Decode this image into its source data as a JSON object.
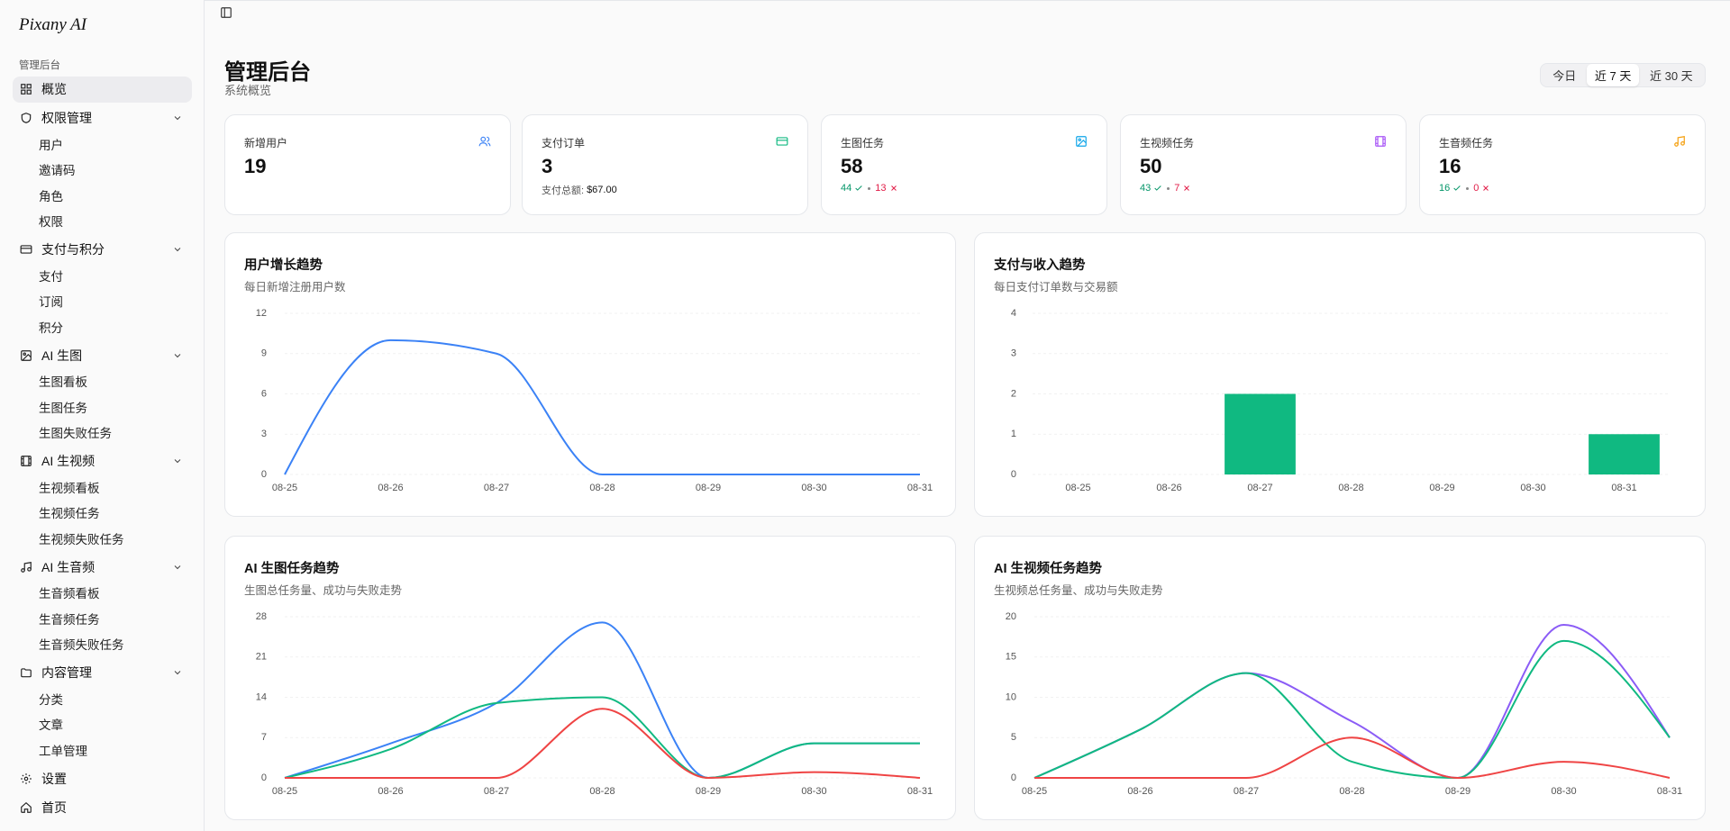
{
  "sidebar": {
    "logo": "Pixany AI",
    "section": "管理后台",
    "items": [
      {
        "label": "概览"
      },
      {
        "label": "权限管理",
        "children": [
          "用户",
          "邀请码",
          "角色",
          "权限"
        ]
      },
      {
        "label": "支付与积分",
        "children": [
          "支付",
          "订阅",
          "积分"
        ]
      },
      {
        "label": "AI 生图",
        "children": [
          "生图看板",
          "生图任务",
          "生图失败任务"
        ]
      },
      {
        "label": "AI 生视频",
        "children": [
          "生视频看板",
          "生视频任务",
          "生视频失败任务"
        ]
      },
      {
        "label": "AI 生音频",
        "children": [
          "生音频看板",
          "生音频任务",
          "生音频失败任务"
        ]
      },
      {
        "label": "内容管理",
        "children": [
          "分类",
          "文章",
          "工单管理"
        ]
      },
      {
        "label": "设置"
      },
      {
        "label": "首页"
      }
    ]
  },
  "header": {
    "title": "管理后台",
    "subtitle": "系统概览",
    "ranges": [
      "今日",
      "近 7 天",
      "近 30 天"
    ]
  },
  "stats": [
    {
      "label": "新增用户",
      "value": 19
    },
    {
      "label": "支付订单",
      "value": 3,
      "note_label": "支付总额:",
      "note_value": "$67.00"
    },
    {
      "label": "生图任务",
      "value": 58,
      "success": 44,
      "failed": 13
    },
    {
      "label": "生视频任务",
      "value": 50,
      "success": 43,
      "failed": 7
    },
    {
      "label": "生音频任务",
      "value": 16,
      "success": 16,
      "failed": 0
    }
  ],
  "chart_data": [
    {
      "type": "line",
      "title": "用户增长趋势",
      "subtitle": "每日新增注册用户数",
      "categories": [
        "08-25",
        "08-26",
        "08-27",
        "08-28",
        "08-29",
        "08-30",
        "08-31"
      ],
      "series": [
        {
          "color": "#3b82f6",
          "values": [
            0,
            10,
            9,
            0,
            0,
            0,
            0
          ]
        }
      ],
      "ylim": [
        0,
        12
      ],
      "yticks": [
        0,
        3,
        6,
        9,
        12
      ],
      "grid": true
    },
    {
      "type": "bar",
      "title": "支付与收入趋势",
      "subtitle": "每日支付订单数与交易额",
      "categories": [
        "08-25",
        "08-26",
        "08-27",
        "08-28",
        "08-29",
        "08-30",
        "08-31"
      ],
      "series": [
        {
          "color": "#10b981",
          "values": [
            0,
            0,
            2,
            0,
            0,
            0,
            1
          ]
        }
      ],
      "ylim": [
        0,
        4
      ],
      "yticks": [
        0,
        1,
        2,
        3,
        4
      ],
      "grid": true
    },
    {
      "type": "line",
      "title": "AI 生图任务趋势",
      "subtitle": "生图总任务量、成功与失败走势",
      "categories": [
        "08-25",
        "08-26",
        "08-27",
        "08-28",
        "08-29",
        "08-30",
        "08-31"
      ],
      "series": [
        {
          "color": "#3b82f6",
          "values": [
            0,
            6,
            13,
            27,
            0,
            6,
            6
          ]
        },
        {
          "color": "#10b981",
          "values": [
            0,
            5,
            13,
            14,
            0,
            6,
            6
          ]
        },
        {
          "color": "#ef4444",
          "values": [
            0,
            0,
            0,
            12,
            0,
            1,
            0
          ]
        }
      ],
      "ylim": [
        0,
        28
      ],
      "yticks": [
        0,
        7,
        14,
        21,
        28
      ],
      "grid": true
    },
    {
      "type": "line",
      "title": "AI 生视频任务趋势",
      "subtitle": "生视频总任务量、成功与失败走势",
      "categories": [
        "08-25",
        "08-26",
        "08-27",
        "08-28",
        "08-29",
        "08-30",
        "08-31"
      ],
      "series": [
        {
          "color": "#8b5cf6",
          "values": [
            0,
            6,
            13,
            7,
            0,
            19,
            5
          ]
        },
        {
          "color": "#10b981",
          "values": [
            0,
            6,
            13,
            2,
            0,
            17,
            5
          ]
        },
        {
          "color": "#ef4444",
          "values": [
            0,
            0,
            0,
            5,
            0,
            2,
            0
          ]
        }
      ],
      "ylim": [
        0,
        20
      ],
      "yticks": [
        0,
        5,
        10,
        15,
        20
      ],
      "grid": true
    }
  ]
}
